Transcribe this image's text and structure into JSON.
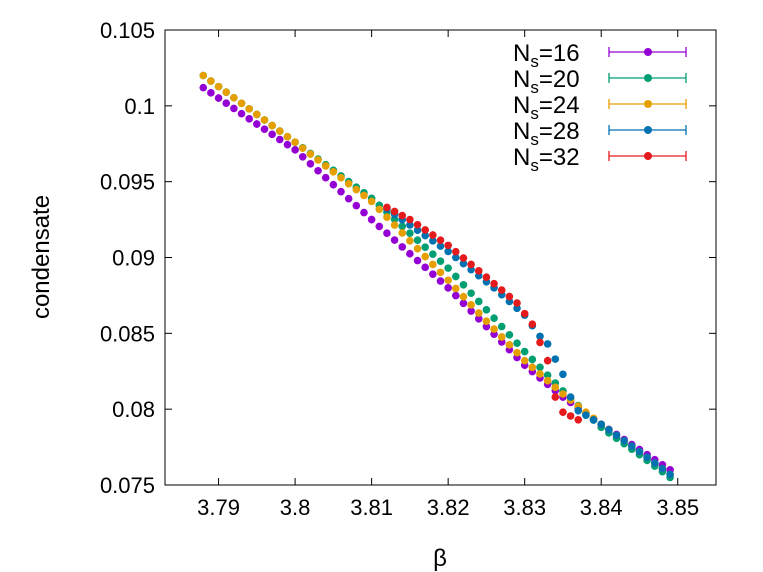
{
  "chart_data": {
    "type": "scatter",
    "title": "",
    "xlabel": "β",
    "ylabel": "condensate",
    "xlim": [
      3.783,
      3.855
    ],
    "ylim": [
      0.075,
      0.105
    ],
    "xticks": [
      "3.79",
      "3.8",
      "3.81",
      "3.82",
      "3.83",
      "3.84",
      "3.85"
    ],
    "yticks": [
      "0.075",
      "0.08",
      "0.085",
      "0.09",
      "0.095",
      "0.1",
      "0.105"
    ],
    "grid": false,
    "legend_position": "top-right",
    "series": [
      {
        "name": "N_s=16",
        "label_main": "N",
        "label_sub": "s",
        "label_rest": "=16",
        "color": "#9400d3",
        "x_start": 3.788,
        "x_end": 3.849,
        "x_step": 0.001,
        "y_anchors": [
          [
            3.788,
            0.1012
          ],
          [
            3.795,
            0.0988
          ],
          [
            3.8,
            0.0971
          ],
          [
            3.81,
            0.0925
          ],
          [
            3.82,
            0.088
          ],
          [
            3.83,
            0.0829
          ],
          [
            3.835,
            0.0808
          ],
          [
            3.84,
            0.079
          ],
          [
            3.849,
            0.076
          ]
        ]
      },
      {
        "name": "N_s=20",
        "label_main": "N",
        "label_sub": "s",
        "label_rest": "=20",
        "color": "#009e73",
        "x_start": 3.788,
        "x_end": 3.849,
        "x_step": 0.001,
        "y_anchors": [
          [
            3.788,
            0.102
          ],
          [
            3.8,
            0.0976
          ],
          [
            3.81,
            0.0939
          ],
          [
            3.82,
            0.0893
          ],
          [
            3.826,
            0.086
          ],
          [
            3.83,
            0.0838
          ],
          [
            3.835,
            0.0812
          ],
          [
            3.84,
            0.0788
          ],
          [
            3.845,
            0.077
          ],
          [
            3.849,
            0.0755
          ]
        ]
      },
      {
        "name": "N_s=24",
        "label_main": "N",
        "label_sub": "s",
        "label_rest": "=24",
        "color": "#e69f00",
        "x_start": 3.788,
        "x_end": 3.849,
        "x_step": 0.001,
        "y_anchors": [
          [
            3.788,
            0.102
          ],
          [
            3.8,
            0.0976
          ],
          [
            3.81,
            0.0937
          ],
          [
            3.82,
            0.0885
          ],
          [
            3.825,
            0.0858
          ],
          [
            3.83,
            0.0832
          ],
          [
            3.835,
            0.081
          ],
          [
            3.84,
            0.079
          ],
          [
            3.845,
            0.0772
          ],
          [
            3.849,
            0.0757
          ]
        ]
      },
      {
        "name": "N_s=28",
        "label_main": "N",
        "label_sub": "s",
        "label_rest": "=28",
        "color": "#0072b2",
        "x_start": 3.812,
        "x_end": 3.849,
        "x_step": 0.001,
        "y_anchors": [
          [
            3.812,
            0.0932
          ],
          [
            3.82,
            0.0904
          ],
          [
            3.826,
            0.088
          ],
          [
            3.83,
            0.0862
          ],
          [
            3.832,
            0.0848
          ],
          [
            3.833,
            0.0843
          ],
          [
            3.834,
            0.0833
          ],
          [
            3.835,
            0.0823
          ],
          [
            3.836,
            0.0808
          ],
          [
            3.837,
            0.0799
          ],
          [
            3.84,
            0.079
          ],
          [
            3.845,
            0.0772
          ],
          [
            3.849,
            0.0757
          ]
        ]
      },
      {
        "name": "N_s=32",
        "label_main": "N",
        "label_sub": "s",
        "label_rest": "=32",
        "color": "#e41a1c",
        "x_start": 3.812,
        "x_end": 3.837,
        "x_step": 0.001,
        "y_anchors": [
          [
            3.812,
            0.0933
          ],
          [
            3.815,
            0.0925
          ],
          [
            3.82,
            0.0908
          ],
          [
            3.825,
            0.0887
          ],
          [
            3.829,
            0.087
          ],
          [
            3.831,
            0.0856
          ],
          [
            3.833,
            0.0832
          ],
          [
            3.834,
            0.0808
          ],
          [
            3.835,
            0.0798
          ],
          [
            3.837,
            0.0793
          ]
        ]
      }
    ]
  }
}
